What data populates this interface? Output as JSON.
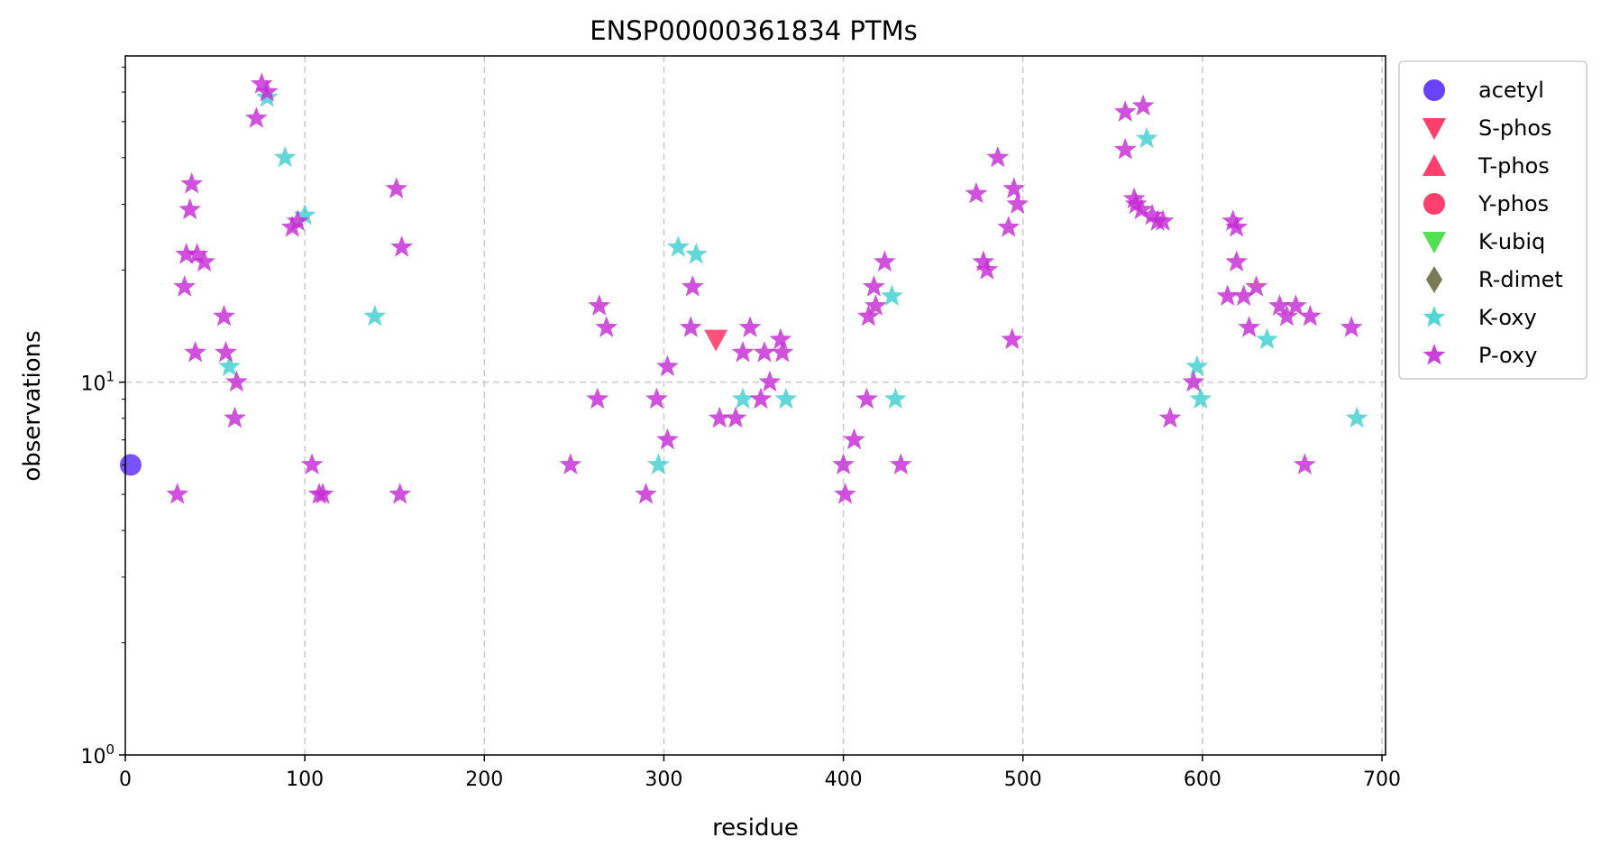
{
  "chart_data": {
    "type": "scatter",
    "title": "ENSP00000361834 PTMs",
    "xlabel": "residue",
    "ylabel": "observations",
    "xlim": [
      0,
      702
    ],
    "ylim": [
      1,
      75
    ],
    "yscale": "log",
    "grid": true,
    "legend_position": "outside-right",
    "xticks": [
      0,
      100,
      200,
      300,
      400,
      500,
      600,
      700
    ],
    "xtick_labels": [
      "0",
      "100",
      "200",
      "300",
      "400",
      "500",
      "600",
      "700"
    ],
    "yticks": [
      {
        "value": 1,
        "base": "10",
        "exp": "0"
      },
      {
        "value": 10,
        "base": "10",
        "exp": "1"
      }
    ],
    "series": [
      {
        "name": "acetyl",
        "marker": "circle",
        "color": "#5a2cff",
        "points": [
          [
            3,
            6
          ]
        ]
      },
      {
        "name": "S-phos",
        "marker": "triangle-down",
        "color": "#ff2b5e",
        "points": [
          [
            329,
            13
          ]
        ]
      },
      {
        "name": "T-phos",
        "marker": "triangle-up",
        "color": "#ff2b5e",
        "points": []
      },
      {
        "name": "Y-phos",
        "marker": "circle",
        "color": "#ff2b5e",
        "points": []
      },
      {
        "name": "K-ubiq",
        "marker": "triangle-down",
        "color": "#3fdc3f",
        "points": []
      },
      {
        "name": "R-dimet",
        "marker": "diamond",
        "color": "#6b6b43",
        "points": []
      },
      {
        "name": "K-oxy",
        "marker": "star",
        "color": "#3fd0d0",
        "points": [
          [
            79,
            58
          ],
          [
            89,
            40
          ],
          [
            100,
            28
          ],
          [
            139,
            15
          ],
          [
            58,
            11
          ],
          [
            308,
            23
          ],
          [
            318,
            22
          ],
          [
            297,
            6
          ],
          [
            344,
            9
          ],
          [
            368,
            9
          ],
          [
            427,
            17
          ],
          [
            429,
            9
          ],
          [
            569,
            45
          ],
          [
            597,
            11
          ],
          [
            599,
            9
          ],
          [
            636,
            13
          ],
          [
            686,
            8
          ]
        ]
      },
      {
        "name": "P-oxy",
        "marker": "star",
        "color": "#c42bd4",
        "points": [
          [
            76,
            63
          ],
          [
            79,
            60
          ],
          [
            73,
            51
          ],
          [
            37,
            34
          ],
          [
            36,
            29
          ],
          [
            34,
            22
          ],
          [
            40,
            22
          ],
          [
            44,
            21
          ],
          [
            33,
            18
          ],
          [
            39,
            12
          ],
          [
            55,
            15
          ],
          [
            56,
            12
          ],
          [
            62,
            10
          ],
          [
            61,
            8
          ],
          [
            93,
            26
          ],
          [
            96,
            27
          ],
          [
            151,
            33
          ],
          [
            154,
            23
          ],
          [
            104,
            6
          ],
          [
            108,
            5
          ],
          [
            110,
            5
          ],
          [
            153,
            5
          ],
          [
            29,
            5
          ],
          [
            264,
            16
          ],
          [
            268,
            14
          ],
          [
            263,
            9
          ],
          [
            316,
            18
          ],
          [
            315,
            14
          ],
          [
            302,
            11
          ],
          [
            296,
            9
          ],
          [
            302,
            7
          ],
          [
            290,
            5
          ],
          [
            248,
            6
          ],
          [
            331,
            8
          ],
          [
            340,
            8
          ],
          [
            344,
            12
          ],
          [
            348,
            14
          ],
          [
            354,
            9
          ],
          [
            356,
            12
          ],
          [
            359,
            10
          ],
          [
            365,
            13
          ],
          [
            366,
            12
          ],
          [
            400,
            6
          ],
          [
            401,
            5
          ],
          [
            406,
            7
          ],
          [
            413,
            9
          ],
          [
            414,
            15
          ],
          [
            417,
            18
          ],
          [
            418,
            16
          ],
          [
            423,
            21
          ],
          [
            432,
            6
          ],
          [
            474,
            32
          ],
          [
            478,
            21
          ],
          [
            480,
            20
          ],
          [
            486,
            40
          ],
          [
            492,
            26
          ],
          [
            494,
            13
          ],
          [
            495,
            33
          ],
          [
            497,
            30
          ],
          [
            557,
            53
          ],
          [
            557,
            42
          ],
          [
            562,
            31
          ],
          [
            563,
            30
          ],
          [
            566,
            29
          ],
          [
            567,
            55
          ],
          [
            572,
            28
          ],
          [
            575,
            27
          ],
          [
            578,
            27
          ],
          [
            582,
            8
          ],
          [
            595,
            10
          ],
          [
            614,
            17
          ],
          [
            617,
            27
          ],
          [
            619,
            26
          ],
          [
            619,
            21
          ],
          [
            623,
            17
          ],
          [
            626,
            14
          ],
          [
            630,
            18
          ],
          [
            643,
            16
          ],
          [
            647,
            15
          ],
          [
            652,
            16
          ],
          [
            657,
            6
          ],
          [
            660,
            15
          ],
          [
            683,
            14
          ]
        ]
      }
    ]
  }
}
